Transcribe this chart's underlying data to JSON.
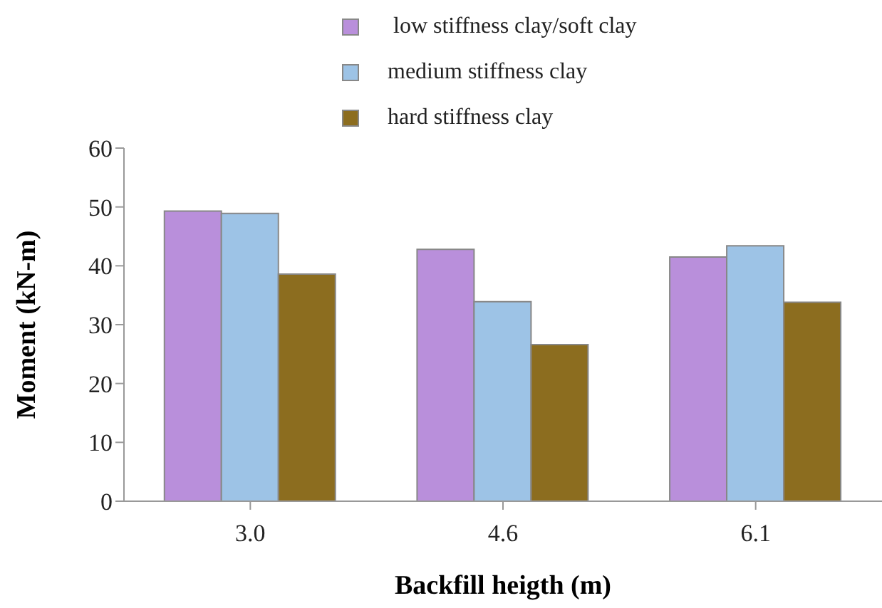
{
  "chart_data": {
    "type": "bar",
    "xlabel": "Backfill heigth (m)",
    "ylabel": "Moment (kN-m)",
    "categories": [
      "3.0",
      "4.6",
      "6.1"
    ],
    "series": [
      {
        "name": " low stiffness clay/soft clay",
        "color": "#b98fdb",
        "values": [
          49.3,
          42.8,
          41.5
        ]
      },
      {
        "name": "medium stiffness clay",
        "color": "#9dc3e6",
        "values": [
          48.9,
          33.9,
          43.4
        ]
      },
      {
        "name": "hard stiffness clay",
        "color": "#8c6d1f",
        "values": [
          38.6,
          26.6,
          33.8
        ]
      }
    ],
    "ylim": [
      0,
      60
    ],
    "yticks": [
      0,
      10,
      20,
      30,
      40,
      50,
      60
    ],
    "grid": false,
    "legend": "top"
  }
}
